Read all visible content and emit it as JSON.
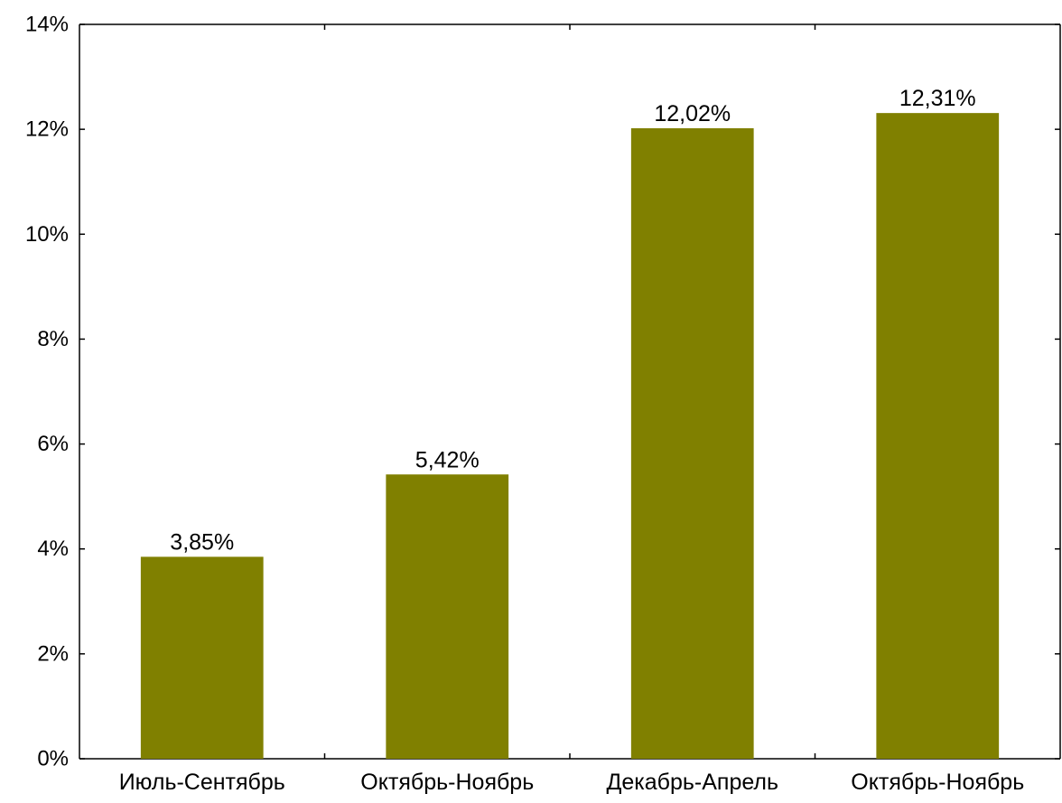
{
  "chart_data": {
    "type": "bar",
    "categories": [
      "Июль-Сентябрь",
      "Октябрь-Ноябрь",
      "Декабрь-Апрель",
      "Октябрь-Ноябрь"
    ],
    "values": [
      3.85,
      5.42,
      12.02,
      12.31
    ],
    "data_labels": [
      "3,85%",
      "5,42%",
      "12,02%",
      "12,31%"
    ],
    "yticks": [
      0,
      2,
      4,
      6,
      8,
      10,
      12,
      14
    ],
    "ytick_labels": [
      "0%",
      "2%",
      "4%",
      "6%",
      "8%",
      "10%",
      "12%",
      "14%"
    ],
    "ylim": [
      0,
      14
    ],
    "grid": false,
    "legend": "none",
    "title": "",
    "xlabel": "",
    "ylabel": "",
    "bar_color": "#808000",
    "axis_color": "#000000"
  }
}
